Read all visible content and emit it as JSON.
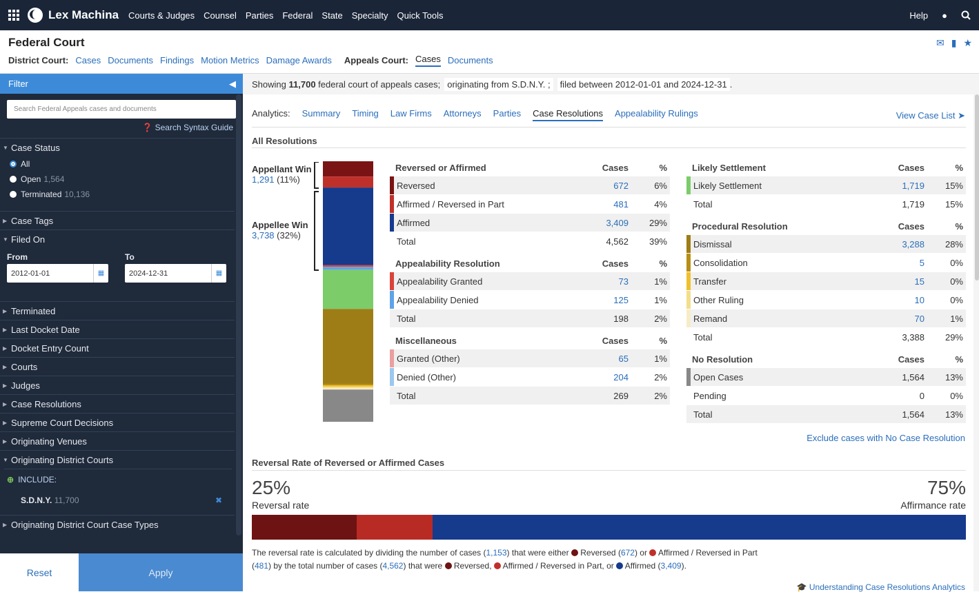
{
  "topnav": {
    "brand": "Lex Machina",
    "items": [
      "Courts & Judges",
      "Counsel",
      "Parties",
      "Federal",
      "State",
      "Specialty",
      "Quick Tools"
    ],
    "help": "Help"
  },
  "header": {
    "title": "Federal Court",
    "district_label": "District Court:",
    "district_links": [
      "Cases",
      "Documents",
      "Findings",
      "Motion Metrics",
      "Damage Awards"
    ],
    "appeals_label": "Appeals Court:",
    "appeals_links": [
      "Cases",
      "Documents"
    ]
  },
  "sidebar": {
    "filter_label": "Filter",
    "search_placeholder": "Search Federal Appeals cases and documents",
    "syntax_guide": "Search Syntax Guide",
    "case_status": "Case Status",
    "status_options": [
      {
        "label": "All",
        "count": ""
      },
      {
        "label": "Open",
        "count": "1,564"
      },
      {
        "label": "Terminated",
        "count": "10,136"
      }
    ],
    "case_tags": "Case Tags",
    "filed_on": "Filed On",
    "from_label": "From",
    "from_value": "2012-01-01",
    "to_label": "To",
    "to_value": "2024-12-31",
    "sections": [
      "Terminated",
      "Last Docket Date",
      "Docket Entry Count",
      "Courts",
      "Judges",
      "Case Resolutions",
      "Supreme Court Decisions",
      "Originating Venues",
      "Originating District Courts"
    ],
    "include_label": "INCLUDE:",
    "include_item": "S.D.N.Y.",
    "include_count": "11,700",
    "last_section": "Originating District Court Case Types",
    "reset": "Reset",
    "apply": "Apply"
  },
  "showing": {
    "prefix": "Showing",
    "count": "11,700",
    "suffix": "federal court of appeals cases;",
    "chip1": "originating from S.D.N.Y. ;",
    "chip2": "filed between 2012-01-01 and 2024-12-31",
    "end": "."
  },
  "analytics": {
    "label": "Analytics:",
    "tabs": [
      "Summary",
      "Timing",
      "Law Firms",
      "Attorneys",
      "Parties",
      "Case Resolutions",
      "Appealability Rulings"
    ],
    "view_case_list": "View Case List"
  },
  "all_resolutions": "All Resolutions",
  "appellant": {
    "label": "Appellant Win",
    "count": "1,291",
    "pct": "(11%)"
  },
  "appellee": {
    "label": "Appellee Win",
    "count": "3,738",
    "pct": "(32%)"
  },
  "stack_segments": [
    {
      "value": 672,
      "color": "#7a1414"
    },
    {
      "value": 481,
      "color": "#c0302a"
    },
    {
      "value": 3409,
      "color": "#163a8c"
    },
    {
      "value": 73,
      "color": "#d9443a"
    },
    {
      "value": 125,
      "color": "#5ea3e8"
    },
    {
      "value": 1719,
      "color": "#7ccc6a"
    },
    {
      "value": 3288,
      "color": "#9e7d16"
    },
    {
      "value": 5,
      "color": "#b88f15"
    },
    {
      "value": 15,
      "color": "#f0c02c"
    },
    {
      "value": 10,
      "color": "#f3de8a"
    },
    {
      "value": 70,
      "color": "#f7ecc8"
    },
    {
      "value": 1564,
      "color": "#888888"
    }
  ],
  "tables_left": [
    {
      "title": "Reversed or Affirmed",
      "h2": "Cases",
      "h3": "%",
      "rows": [
        {
          "label": "Reversed",
          "cases": "672",
          "pct": "6%",
          "color": "#7a1414",
          "link": true
        },
        {
          "label": "Affirmed / Reversed in Part",
          "cases": "481",
          "pct": "4%",
          "color": "#c0302a",
          "link": true
        },
        {
          "label": "Affirmed",
          "cases": "3,409",
          "pct": "29%",
          "color": "#163a8c",
          "link": true
        },
        {
          "label": "Total",
          "cases": "4,562",
          "pct": "39%",
          "color": "",
          "link": false
        }
      ]
    },
    {
      "title": "Appealability Resolution",
      "h2": "Cases",
      "h3": "%",
      "rows": [
        {
          "label": "Appealability Granted",
          "cases": "73",
          "pct": "1%",
          "color": "#d9443a",
          "link": true
        },
        {
          "label": "Appealability Denied",
          "cases": "125",
          "pct": "1%",
          "color": "#5ea3e8",
          "link": true
        },
        {
          "label": "Total",
          "cases": "198",
          "pct": "2%",
          "color": "",
          "link": false
        }
      ]
    },
    {
      "title": "Miscellaneous",
      "h2": "Cases",
      "h3": "%",
      "rows": [
        {
          "label": "Granted (Other)",
          "cases": "65",
          "pct": "1%",
          "color": "#eaa0a0",
          "link": true
        },
        {
          "label": "Denied (Other)",
          "cases": "204",
          "pct": "2%",
          "color": "#9cc8f0",
          "link": true
        },
        {
          "label": "Total",
          "cases": "269",
          "pct": "2%",
          "color": "",
          "link": false
        }
      ]
    }
  ],
  "tables_right": [
    {
      "title": "Likely Settlement",
      "h2": "Cases",
      "h3": "%",
      "rows": [
        {
          "label": "Likely Settlement",
          "cases": "1,719",
          "pct": "15%",
          "color": "#7ccc6a",
          "link": true
        },
        {
          "label": "Total",
          "cases": "1,719",
          "pct": "15%",
          "color": "",
          "link": false
        }
      ]
    },
    {
      "title": "Procedural Resolution",
      "h2": "Cases",
      "h3": "%",
      "rows": [
        {
          "label": "Dismissal",
          "cases": "3,288",
          "pct": "28%",
          "color": "#9e7d16",
          "link": true
        },
        {
          "label": "Consolidation",
          "cases": "5",
          "pct": "0%",
          "color": "#b88f15",
          "link": true
        },
        {
          "label": "Transfer",
          "cases": "15",
          "pct": "0%",
          "color": "#f0c02c",
          "link": true
        },
        {
          "label": "Other Ruling",
          "cases": "10",
          "pct": "0%",
          "color": "#f3de8a",
          "link": true
        },
        {
          "label": "Remand",
          "cases": "70",
          "pct": "1%",
          "color": "#f7ecc8",
          "link": true
        },
        {
          "label": "Total",
          "cases": "3,388",
          "pct": "29%",
          "color": "",
          "link": false
        }
      ]
    },
    {
      "title": "No Resolution",
      "h2": "Cases",
      "h3": "%",
      "rows": [
        {
          "label": "Open Cases",
          "cases": "1,564",
          "pct": "13%",
          "color": "#888888",
          "link": false
        },
        {
          "label": "Pending",
          "cases": "0",
          "pct": "0%",
          "color": "",
          "link": false
        },
        {
          "label": "Total",
          "cases": "1,564",
          "pct": "13%",
          "color": "",
          "link": false
        }
      ]
    }
  ],
  "exclude_link": "Exclude cases with No Case Resolution",
  "reversal": {
    "title": "Reversal Rate of Reversed or Affirmed Cases",
    "rev_pct": "25%",
    "rev_label": "Reversal rate",
    "aff_pct": "75%",
    "aff_label": "Affirmance rate",
    "bar": [
      {
        "value": 672,
        "color": "#6e1313"
      },
      {
        "value": 481,
        "color": "#b82b25"
      },
      {
        "value": 3409,
        "color": "#163a8c"
      }
    ],
    "note": [
      "The reversal rate is calculated by dividing the number of cases (",
      "1,153",
      ") that were either ",
      "Reversed (",
      "672",
      ") or ",
      "Affirmed / Reversed in Part (",
      "481",
      ") by the total number of cases (",
      "4,562",
      ") that were ",
      "Reversed, ",
      "Affirmed / Reversed in Part, or ",
      "Affirmed (",
      "3,409",
      ")."
    ]
  },
  "understanding": "Understanding Case Resolutions Analytics"
}
